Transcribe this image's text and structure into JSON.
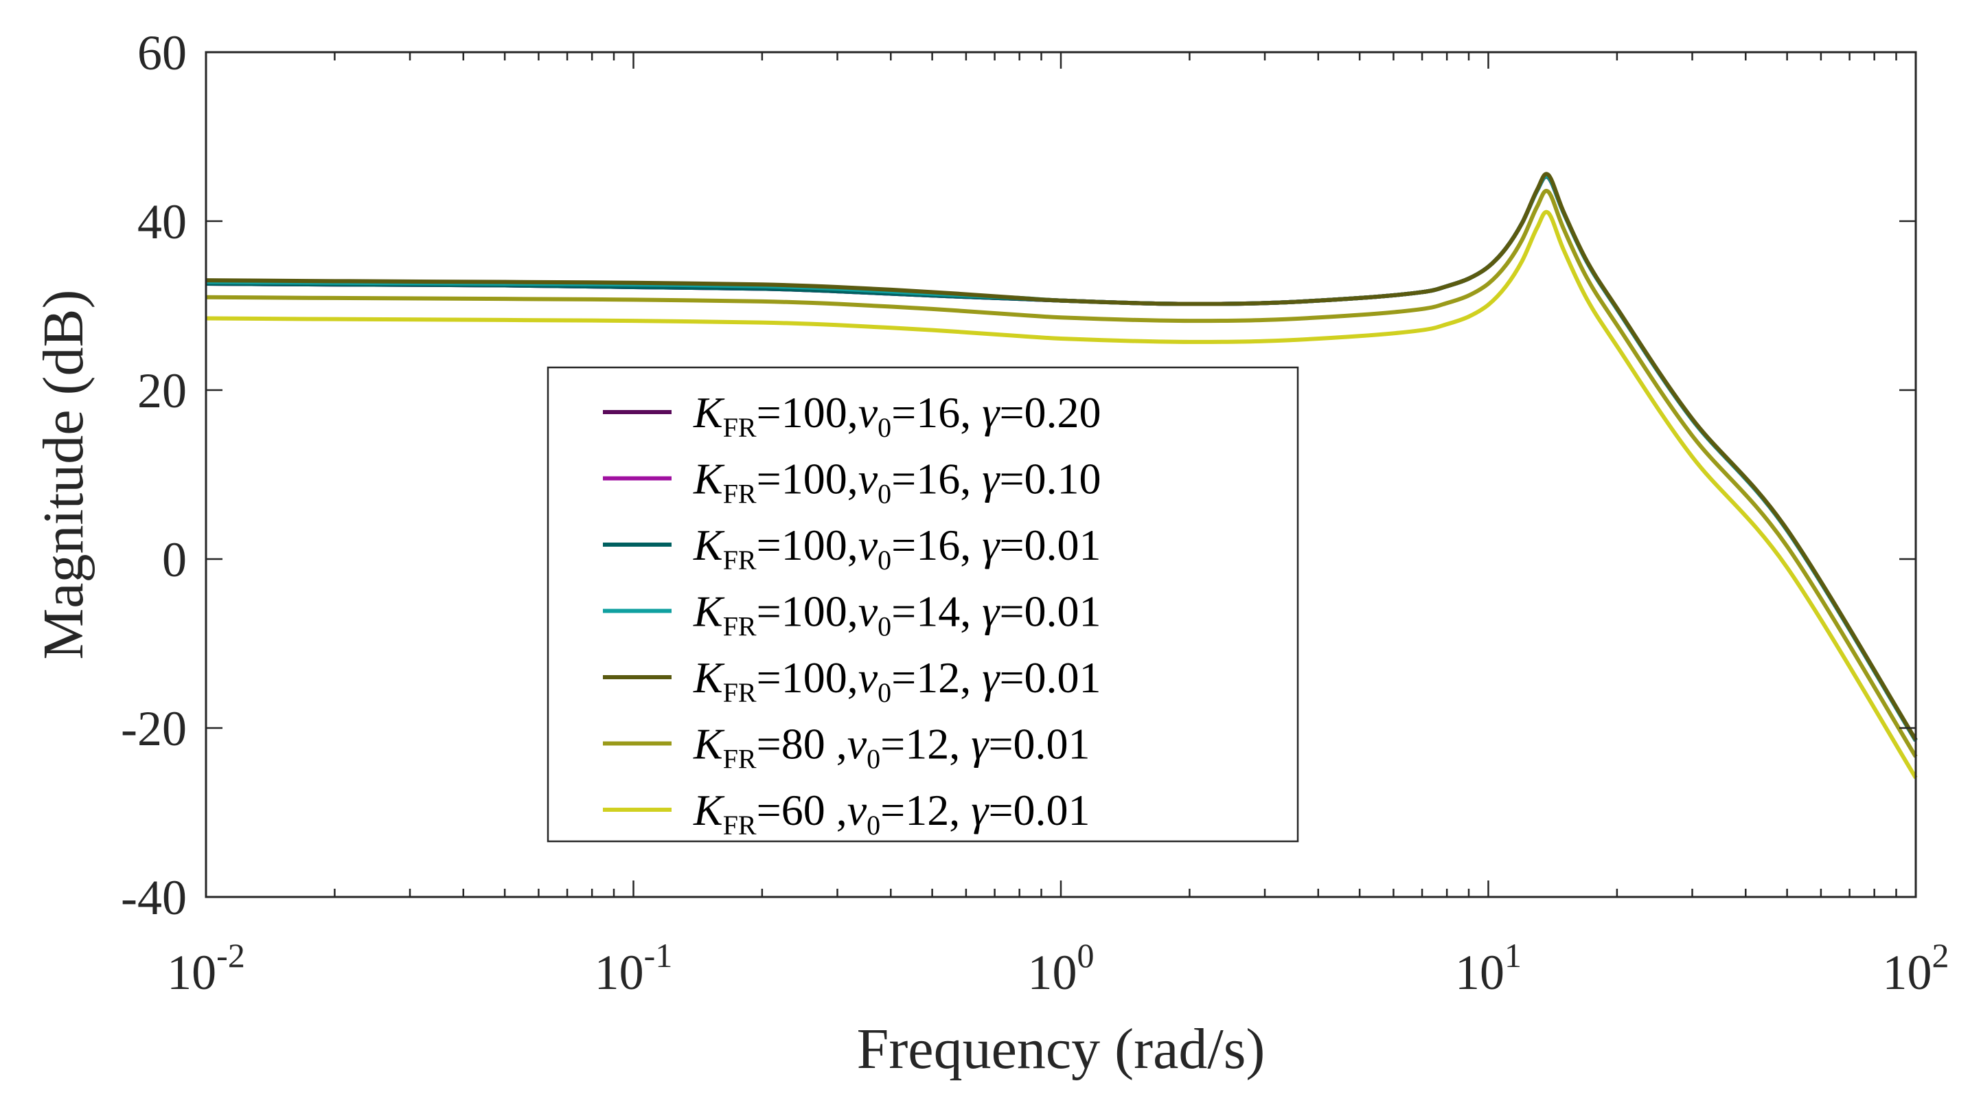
{
  "chart_data": {
    "type": "line",
    "title": "",
    "xlabel": "Frequency (rad/s)",
    "ylabel": "Magnitude (dB)",
    "xscale": "log",
    "xlim": [
      0.01,
      100
    ],
    "ylim": [
      -40,
      60
    ],
    "x_ticks": [
      {
        "value": 0.01,
        "base": "10",
        "exp": "-2"
      },
      {
        "value": 0.1,
        "base": "10",
        "exp": "-1"
      },
      {
        "value": 1,
        "base": "10",
        "exp": "0"
      },
      {
        "value": 10,
        "base": "10",
        "exp": "1"
      },
      {
        "value": 100,
        "base": "10",
        "exp": "2"
      }
    ],
    "y_ticks": [
      {
        "value": 60,
        "label": "60"
      },
      {
        "value": 40,
        "label": "40"
      },
      {
        "value": 20,
        "label": "20"
      },
      {
        "value": 0,
        "label": "0"
      },
      {
        "value": -20,
        "label": "-20"
      },
      {
        "value": -40,
        "label": "-40"
      }
    ],
    "grid": false,
    "legend_position": "center-left",
    "x": [
      0.01,
      0.02,
      0.05,
      0.1,
      0.2,
      0.3,
      0.5,
      0.8,
      1,
      1.5,
      2,
      3,
      5,
      7,
      8,
      9,
      10,
      11,
      12,
      13,
      13.8,
      15,
      17,
      20,
      30,
      50,
      100
    ],
    "series": [
      {
        "name": "K_FR=100,v0=16, γ=0.20",
        "color": "#5a0a5a",
        "values": [
          32.6,
          32.5,
          32.4,
          32.2,
          32.0,
          31.7,
          31.2,
          30.8,
          30.6,
          30.3,
          30.2,
          30.3,
          30.9,
          31.6,
          32.3,
          33.2,
          34.6,
          36.8,
          39.8,
          43.6,
          45.2,
          41.0,
          35.2,
          29.6,
          16.5,
          3.4,
          -21.5
        ]
      },
      {
        "name": "K_FR=100,v0=16, γ=0.10",
        "color": "#a010a0",
        "values": [
          32.6,
          32.5,
          32.4,
          32.2,
          32.0,
          31.7,
          31.2,
          30.8,
          30.6,
          30.3,
          30.2,
          30.3,
          30.9,
          31.6,
          32.3,
          33.2,
          34.6,
          36.8,
          39.8,
          43.6,
          45.2,
          41.0,
          35.2,
          29.6,
          16.5,
          3.4,
          -21.5
        ]
      },
      {
        "name": "K_FR=100,v0=16, γ=0.01",
        "color": "#006060",
        "values": [
          32.6,
          32.5,
          32.4,
          32.2,
          32.0,
          31.7,
          31.2,
          30.8,
          30.6,
          30.3,
          30.2,
          30.3,
          30.9,
          31.6,
          32.3,
          33.2,
          34.6,
          36.8,
          39.8,
          43.6,
          45.2,
          41.0,
          35.2,
          29.6,
          16.5,
          3.4,
          -21.5
        ]
      },
      {
        "name": "K_FR=100,v0=14, γ=0.01",
        "color": "#10a0a0",
        "values": [
          32.8,
          32.7,
          32.6,
          32.5,
          32.3,
          32.0,
          31.4,
          30.9,
          30.6,
          30.3,
          30.2,
          30.3,
          30.9,
          31.6,
          32.3,
          33.2,
          34.6,
          36.8,
          39.8,
          43.6,
          45.3,
          41.0,
          35.2,
          29.6,
          16.5,
          3.4,
          -21.5
        ]
      },
      {
        "name": "K_FR=100,v0=12, γ=0.01",
        "color": "#5a5a10",
        "values": [
          33.0,
          32.9,
          32.8,
          32.7,
          32.5,
          32.2,
          31.6,
          30.9,
          30.6,
          30.3,
          30.2,
          30.3,
          30.9,
          31.6,
          32.3,
          33.2,
          34.6,
          36.8,
          39.8,
          43.7,
          45.5,
          41.1,
          35.3,
          29.7,
          16.6,
          3.5,
          -21.4
        ]
      },
      {
        "name": "K_FR=80  ,v0=12, γ=0.01",
        "color": "#9a9a1a",
        "values": [
          31.0,
          30.9,
          30.8,
          30.7,
          30.5,
          30.2,
          29.6,
          28.9,
          28.6,
          28.3,
          28.2,
          28.3,
          28.9,
          29.6,
          30.3,
          31.2,
          32.6,
          34.8,
          37.8,
          41.7,
          43.5,
          39.1,
          33.3,
          27.7,
          14.6,
          1.5,
          -23.4
        ]
      },
      {
        "name": "K_FR=60  ,v0=12, γ=0.01",
        "color": "#d0d020",
        "values": [
          28.5,
          28.4,
          28.3,
          28.2,
          28.0,
          27.7,
          27.1,
          26.4,
          26.1,
          25.8,
          25.7,
          25.8,
          26.4,
          27.1,
          27.8,
          28.7,
          30.1,
          32.3,
          35.3,
          39.2,
          41.0,
          36.6,
          30.8,
          25.2,
          12.1,
          -1.0,
          -25.9
        ]
      }
    ],
    "legend": [
      {
        "k": "K",
        "k_sub": "FR",
        "k_val": "=100,",
        "v": "v",
        "v_sub": "0",
        "v_val": "=16, ",
        "g": "γ",
        "g_val": "=0.20",
        "color": "#5a0a5a"
      },
      {
        "k": "K",
        "k_sub": "FR",
        "k_val": "=100,",
        "v": "v",
        "v_sub": "0",
        "v_val": "=16, ",
        "g": "γ",
        "g_val": "=0.10",
        "color": "#a010a0"
      },
      {
        "k": "K",
        "k_sub": "FR",
        "k_val": "=100,",
        "v": "v",
        "v_sub": "0",
        "v_val": "=16, ",
        "g": "γ",
        "g_val": "=0.01",
        "color": "#006060"
      },
      {
        "k": "K",
        "k_sub": "FR",
        "k_val": "=100,",
        "v": "v",
        "v_sub": "0",
        "v_val": "=14, ",
        "g": "γ",
        "g_val": "=0.01",
        "color": "#10a0a0"
      },
      {
        "k": "K",
        "k_sub": "FR",
        "k_val": "=100,",
        "v": "v",
        "v_sub": "0",
        "v_val": "=12, ",
        "g": "γ",
        "g_val": "=0.01",
        "color": "#5a5a10"
      },
      {
        "k": "K",
        "k_sub": "FR",
        "k_val": "=80  ,",
        "v": "v",
        "v_sub": "0",
        "v_val": "=12, ",
        "g": "γ",
        "g_val": "=0.01",
        "color": "#9a9a1a"
      },
      {
        "k": "K",
        "k_sub": "FR",
        "k_val": "=60  ,",
        "v": "v",
        "v_sub": "0",
        "v_val": "=12, ",
        "g": "γ",
        "g_val": "=0.01",
        "color": "#d0d020"
      }
    ]
  }
}
